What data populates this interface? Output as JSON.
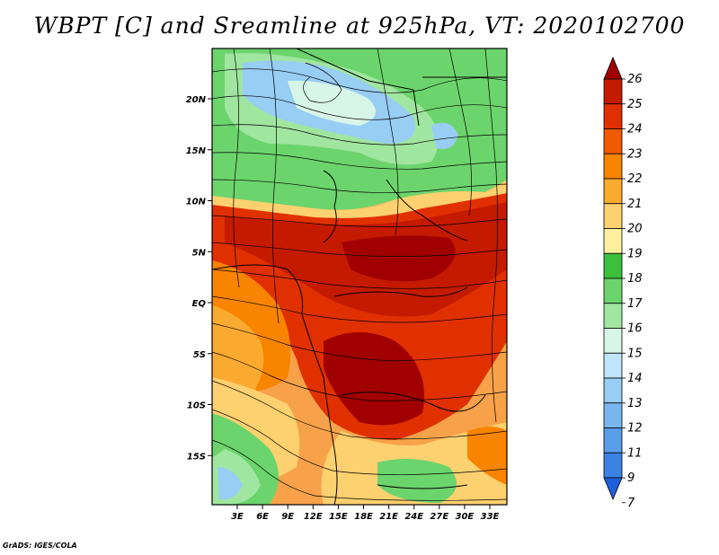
{
  "title": "WBPT [C] and Sreamline at 925hPa, VT: 2020102700",
  "credit": "GrADS: IGES/COLA",
  "map": {
    "lon_range": [
      0,
      35
    ],
    "lat_range": [
      -20,
      25
    ],
    "lat_ticks": [
      "20N",
      "15N",
      "10N",
      "5N",
      "EQ",
      "5S",
      "10S",
      "15S"
    ],
    "lon_ticks": [
      "3E",
      "6E",
      "9E",
      "12E",
      "15E",
      "18E",
      "21E",
      "24E",
      "27E",
      "30E",
      "33E"
    ]
  },
  "colorbar": {
    "labels": [
      "26",
      "25",
      "24",
      "23",
      "22",
      "21",
      "20",
      "19",
      "18",
      "17",
      "16",
      "15",
      "14",
      "13",
      "12",
      "11",
      "9",
      "7"
    ],
    "colors": [
      "#a00000",
      "#c41a00",
      "#e03000",
      "#f05a00",
      "#f88400",
      "#fbaa30",
      "#fdd070",
      "#fff0a0",
      "#3cbf3c",
      "#6cd46c",
      "#a0e6a0",
      "#d8f6e8",
      "#c0e4f8",
      "#98cdf4",
      "#78b6ee",
      "#5a9eea",
      "#3c82e4",
      "#1e60d8"
    ]
  }
}
